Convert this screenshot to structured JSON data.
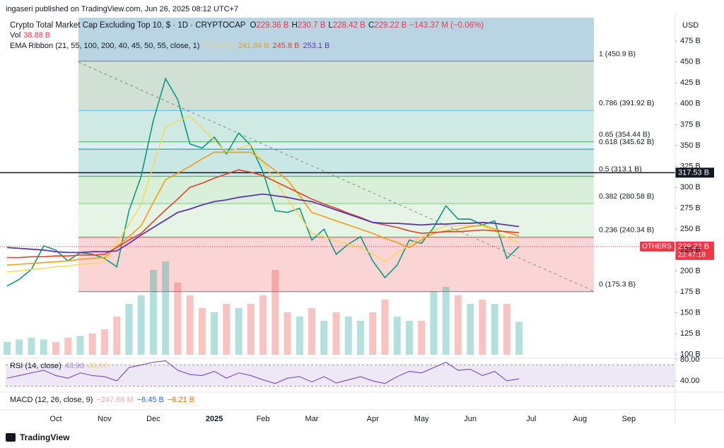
{
  "header": {
    "publisher": "ingaseri published on TradingView.com, Jun 26, 2025 08:12 UTC+7",
    "symbol": "Crypto Total Market Cap Excluding Top 10, $ · 1D · CRYPTOCAP",
    "ohlc": [
      {
        "key": "O",
        "value": "229.36 B"
      },
      {
        "key": "H",
        "value": "230.7 B"
      },
      {
        "key": "L",
        "value": "228.42 B"
      },
      {
        "key": "C",
        "value": "229.22 B"
      }
    ],
    "change": "−143.37 M (−0.06%)",
    "vol_label": "Vol",
    "vol_value": "38.88 B",
    "ema_label": "EMA Ribbon (21, 55, 100, 200, 40, 45, 50, 55, close, 1)",
    "ema_values": [
      "233.03 B",
      "241.84 B",
      "245.8 B",
      "253.1 B"
    ],
    "currency": "USD",
    "rsi_label": "RSI (14, close)",
    "rsi_values": [
      "43.90",
      "40.97"
    ],
    "macd_label": "MACD (12, 26, close, 9)",
    "macd_values": [
      "−247.68 M",
      "−6.45 B",
      "−6.21 B"
    ],
    "footer": "TradingView"
  },
  "chart_data": {
    "type": "line",
    "categories": [
      null,
      null,
      null,
      null,
      "Oct",
      null,
      null,
      null,
      "Nov",
      null,
      null,
      null,
      "Dec",
      null,
      null,
      null,
      null,
      "2025",
      null,
      null,
      null,
      "Feb",
      null,
      null,
      null,
      "Mar",
      null,
      null,
      null,
      null,
      "Apr",
      null,
      null,
      null,
      "May",
      null,
      null,
      null,
      "Jun",
      null,
      null,
      null,
      null,
      "Jul",
      null,
      null,
      null,
      "Aug",
      null,
      null,
      null,
      "Sep",
      null,
      null,
      null
    ],
    "series": [
      {
        "name": "OTHERS",
        "color": "#089981",
        "width": 1.6,
        "values": [
          182,
          190,
          202,
          230,
          225,
          212,
          222,
          220,
          215,
          205,
          272,
          313,
          380,
          430,
          405,
          352,
          347,
          360,
          340,
          365,
          350,
          318,
          272,
          270,
          275,
          237,
          250,
          220,
          232,
          241,
          212,
          192,
          207,
          237,
          233,
          252,
          278,
          262,
          262,
          255,
          260,
          215,
          229.22,
          null,
          null,
          null,
          null,
          null,
          null,
          null,
          null,
          null,
          null,
          null,
          null
        ]
      },
      {
        "color": "#f7d84a",
        "width": 1.4,
        "values": [
          199,
          200,
          202,
          203,
          205,
          206,
          208,
          209,
          211,
          234,
          256,
          279,
          326,
          372,
          379,
          385,
          371,
          356,
          342,
          347,
          351,
          329,
          308,
          286,
          266,
          245,
          241,
          236,
          232,
          228,
          220,
          211,
          221,
          231,
          241,
          248,
          254,
          254,
          254,
          254,
          247,
          240,
          233.03,
          null,
          null,
          null,
          null,
          null,
          null,
          null,
          null,
          null,
          null,
          null,
          null
        ]
      },
      {
        "color": "#f39c12",
        "width": 1.6,
        "values": [
          207,
          208,
          209,
          210,
          211,
          212,
          214,
          215,
          216,
          229,
          241,
          254,
          282,
          309,
          317,
          325,
          334,
          342,
          342,
          342,
          342,
          331,
          320,
          309,
          290,
          270,
          265,
          260,
          255,
          250,
          245,
          239,
          234,
          228,
          237,
          245,
          248,
          250,
          253,
          255,
          250,
          246,
          241.84,
          null,
          null,
          null,
          null,
          null,
          null,
          null,
          null,
          null,
          null,
          null,
          null
        ]
      },
      {
        "color": "#e0402a",
        "width": 1.6,
        "values": [
          216,
          216,
          217,
          217,
          218,
          218,
          219,
          219,
          220,
          228,
          237,
          245,
          259,
          273,
          286,
          300,
          305,
          311,
          316,
          321,
          318,
          314,
          307,
          300,
          293,
          286,
          280,
          275,
          269,
          264,
          258,
          255,
          252,
          248,
          245,
          246,
          247,
          247,
          248,
          249,
          248,
          247,
          245.8,
          null,
          null,
          null,
          null,
          null,
          null,
          null,
          null,
          null,
          null,
          null,
          null
        ]
      },
      {
        "color": "#5e35b1",
        "width": 1.8,
        "values": [
          228,
          227,
          226,
          225,
          223,
          222,
          222,
          223,
          223,
          224,
          233,
          243,
          252,
          261,
          270,
          274,
          279,
          283,
          285,
          288,
          290,
          292,
          290,
          288,
          285,
          283,
          278,
          273,
          268,
          263,
          258,
          257,
          257,
          256,
          255,
          256,
          256,
          257,
          257,
          258,
          257,
          255,
          253.1,
          null,
          null,
          null,
          null,
          null,
          null,
          null,
          null,
          null,
          null,
          null,
          null
        ]
      }
    ],
    "volume": [
      15,
      18,
      20,
      18,
      15,
      20,
      22,
      25,
      30,
      45,
      60,
      70,
      100,
      110,
      85,
      70,
      55,
      50,
      60,
      55,
      60,
      70,
      100,
      50,
      45,
      55,
      40,
      50,
      45,
      40,
      50,
      65,
      45,
      40,
      40,
      75,
      80,
      70,
      60,
      65,
      60,
      60,
      38.88,
      null,
      null,
      null,
      null,
      null,
      null,
      null,
      null,
      null,
      null,
      null,
      null
    ],
    "rsi": [
      45,
      50,
      55,
      60,
      50,
      45,
      55,
      50,
      48,
      40,
      65,
      70,
      75,
      78,
      60,
      52,
      50,
      58,
      45,
      55,
      50,
      42,
      35,
      45,
      48,
      38,
      48,
      36,
      42,
      48,
      40,
      35,
      48,
      58,
      55,
      65,
      75,
      60,
      62,
      50,
      58,
      40,
      43.9,
      null,
      null,
      null,
      null,
      null,
      null,
      null,
      null,
      null,
      null,
      null,
      null
    ],
    "rsi_ylim": [
      28,
      85.3
    ],
    "rsi_yticks": [
      {
        "value": 80,
        "label": "80.00"
      },
      {
        "value": 40,
        "label": "40.00"
      }
    ],
    "rsi_bands": [
      70,
      30
    ],
    "ylim": [
      97.3,
      502.9
    ],
    "yticks": [
      {
        "value": 100,
        "label": "100 B"
      },
      {
        "value": 125,
        "label": "125 B"
      },
      {
        "value": 150,
        "label": "150 B"
      },
      {
        "value": 175,
        "label": "175 B"
      },
      {
        "value": 200,
        "label": "200 B"
      },
      {
        "value": 225,
        "label": "225 B"
      },
      {
        "value": 250,
        "label": "250 B"
      },
      {
        "value": 275,
        "label": "275 B"
      },
      {
        "value": 300,
        "label": "300 B"
      },
      {
        "value": 325,
        "label": "325 B"
      },
      {
        "value": 350,
        "label": "350 B"
      },
      {
        "value": 375,
        "label": "375 B"
      },
      {
        "value": 400,
        "label": "400 B"
      },
      {
        "value": 425,
        "label": "425 B"
      },
      {
        "value": 450,
        "label": "450 B"
      },
      {
        "value": 475,
        "label": "475 B"
      }
    ],
    "top_zone_color": "#b9d4e2",
    "fib_levels": [
      {
        "value": 450.9,
        "label": "1 (450.9 B)",
        "color": "#787b86",
        "zone_color": "#d0e0d4"
      },
      {
        "value": 391.92,
        "label": "0.786 (391.92 B)",
        "color": "#64b5f6",
        "zone_color": "#cfe9e3"
      },
      {
        "value": 354.44,
        "label": "0.65 (354.44 B)",
        "color": "#4caf50",
        "zone_color": "#dcedf4"
      },
      {
        "value": 345.62,
        "label": "0.618 (345.62 B)",
        "color": "#009688",
        "zone_color": "#c9e7e4"
      },
      {
        "value": 313.1,
        "label": "0.5 (313.1 B)",
        "color": "#4caf50",
        "zone_color": "#d9efd9"
      },
      {
        "value": 280.58,
        "label": "0.382 (280.58 B)",
        "color": "#81c784",
        "zone_color": "#e6f4e6"
      },
      {
        "value": 240.34,
        "label": "0.236 (240.34 B)",
        "color": "#f23645",
        "zone_color": "#fbd5d5"
      },
      {
        "value": 175.3,
        "label": "0 (175.3 B)",
        "color": "#787b86"
      }
    ],
    "hline": {
      "value": 317.53,
      "label": "317.53 B"
    },
    "last": {
      "value": 229.22,
      "label": "229.22 B",
      "countdown": "22:47:18"
    }
  }
}
